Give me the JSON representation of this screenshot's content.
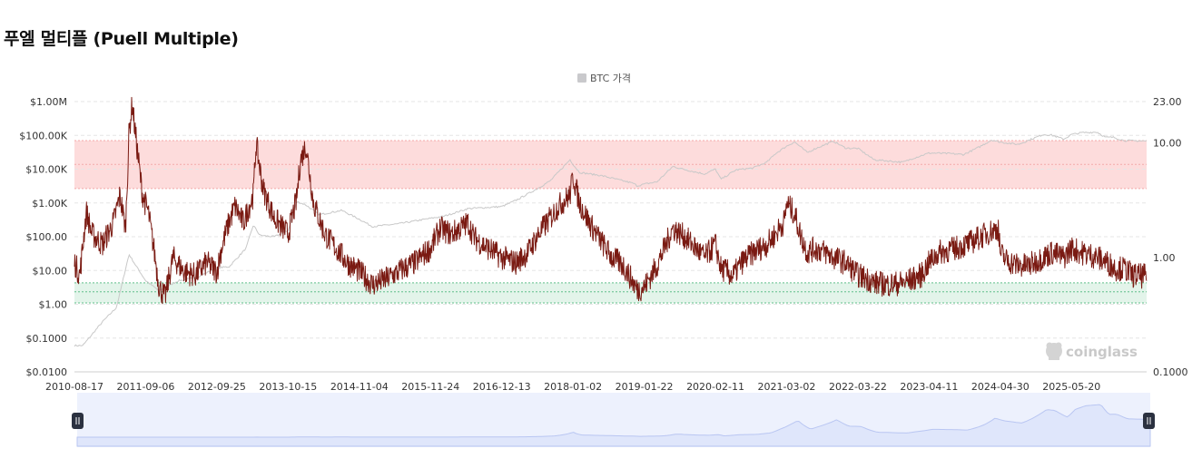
{
  "page": {
    "title": "푸엘 멀티플 (Puell Multiple)"
  },
  "legend": {
    "label": "BTC 가격",
    "swatch_color": "#c9c9cc"
  },
  "watermark": {
    "text": "coinglass",
    "icon": "coinglass-logo-icon"
  },
  "colors": {
    "puell_line": "#7a1a12",
    "btc_line": "#c8c8c8",
    "overvalued_band": "#fddcdc",
    "overvalued_border": "#f4a9a9",
    "undervalued_band": "#e3f4ea",
    "undervalued_border": "#5fbf8a",
    "navigator_fill": "#dfe6fb",
    "navigator_bg": "#edf1fd"
  },
  "chart_data": {
    "type": "line",
    "title": "",
    "xlabel": "",
    "ylabel": "",
    "x_tick_labels": [
      "2010-08-17",
      "2011-09-06",
      "2012-09-25",
      "2013-10-15",
      "2014-11-04",
      "2015-11-24",
      "2016-12-13",
      "2018-01-02",
      "2019-01-22",
      "2020-02-11",
      "2021-03-02",
      "2022-03-22",
      "2023-04-11",
      "2024-04-30",
      "2025-05-20"
    ],
    "x_range": [
      "2010-08-17",
      "2026-06-30"
    ],
    "left_axis": {
      "scale": "log",
      "range": [
        0.01,
        1000000
      ],
      "tick_values": [
        0.01,
        0.1,
        1,
        10,
        100,
        1000,
        10000,
        100000,
        1000000
      ],
      "tick_labels": [
        "$0.0100",
        "$0.1000",
        "$1.00",
        "$10.00",
        "$100.00",
        "$1.00K",
        "$10.00K",
        "$100.00K",
        "$1.00M"
      ]
    },
    "right_axis": {
      "scale": "log",
      "range": [
        0.1,
        23.0
      ],
      "tick_values": [
        0.1,
        1.0,
        10.0,
        23.0
      ],
      "tick_labels": [
        "0.1000",
        "1.00",
        "10.00",
        "23.00"
      ]
    },
    "bands": [
      {
        "name": "overvalued",
        "axis": "right",
        "range": [
          4.0,
          10.5
        ]
      },
      {
        "name": "undervalued",
        "axis": "right",
        "range": [
          0.4,
          0.6
        ]
      }
    ],
    "dashed_guides": [
      {
        "axis": "right",
        "value": 6.5
      },
      {
        "axis": "right",
        "value": 0.5
      }
    ],
    "grid": true,
    "legend_position": "top-center",
    "series": [
      {
        "name": "BTC 가격",
        "axis": "left",
        "style": "thin-grey",
        "x": [
          "2010-08-17",
          "2010-10-01",
          "2011-01-15",
          "2011-04-01",
          "2011-06-08",
          "2011-07-15",
          "2011-09-06",
          "2011-11-18",
          "2012-03-01",
          "2012-06-01",
          "2012-09-25",
          "2012-12-01",
          "2013-03-01",
          "2013-04-10",
          "2013-05-15",
          "2013-08-01",
          "2013-10-15",
          "2013-11-30",
          "2014-01-15",
          "2014-04-01",
          "2014-08-01",
          "2014-11-04",
          "2015-01-14",
          "2015-06-01",
          "2015-11-24",
          "2016-02-01",
          "2016-06-15",
          "2016-12-13",
          "2017-03-01",
          "2017-06-15",
          "2017-09-01",
          "2017-12-17",
          "2018-01-02",
          "2018-02-06",
          "2018-06-01",
          "2018-11-25",
          "2018-12-15",
          "2019-01-22",
          "2019-04-01",
          "2019-06-26",
          "2019-09-01",
          "2019-12-15",
          "2020-02-11",
          "2020-03-12",
          "2020-06-01",
          "2020-09-01",
          "2020-11-15",
          "2021-01-01",
          "2021-03-02",
          "2021-04-14",
          "2021-06-22",
          "2021-08-01",
          "2021-11-10",
          "2022-01-15",
          "2022-03-22",
          "2022-06-18",
          "2022-11-21",
          "2023-01-15",
          "2023-04-11",
          "2023-08-01",
          "2023-10-15",
          "2024-01-10",
          "2024-03-14",
          "2024-04-30",
          "2024-08-05",
          "2024-11-15",
          "2024-12-17",
          "2025-02-01",
          "2025-04-08",
          "2025-05-20",
          "2025-07-14",
          "2025-10-06",
          "2025-11-20",
          "2026-01-01",
          "2026-03-01",
          "2026-06-30"
        ],
        "values": [
          0.06,
          0.06,
          0.3,
          0.8,
          30,
          14,
          5,
          2.5,
          5,
          6,
          12,
          13,
          45,
          220,
          110,
          100,
          150,
          1100,
          900,
          450,
          600,
          330,
          200,
          240,
          350,
          400,
          680,
          780,
          1200,
          2500,
          4500,
          19000,
          14000,
          8000,
          6500,
          3800,
          3200,
          3600,
          4200,
          12000,
          9600,
          7200,
          10000,
          5000,
          9500,
          10800,
          16000,
          29000,
          48000,
          64000,
          31000,
          40000,
          67000,
          42000,
          41000,
          19000,
          16000,
          21000,
          30000,
          29000,
          27000,
          46000,
          73000,
          63000,
          54000,
          90000,
          106000,
          102000,
          77000,
          106000,
          120000,
          125000,
          87000,
          88000,
          70000,
          68000
        ]
      },
      {
        "name": "Puell Multiple",
        "axis": "right",
        "style": "noisy-dark-red",
        "x": [
          "2010-08-17",
          "2010-09-15",
          "2010-10-20",
          "2010-11-20",
          "2011-01-15",
          "2011-03-15",
          "2011-04-20",
          "2011-05-20",
          "2011-06-08",
          "2011-06-25",
          "2011-07-25",
          "2011-08-20",
          "2011-09-20",
          "2011-10-20",
          "2011-11-18",
          "2011-12-20",
          "2012-02-01",
          "2012-04-01",
          "2012-06-01",
          "2012-08-01",
          "2012-09-25",
          "2012-10-20",
          "2012-11-28",
          "2013-01-01",
          "2013-02-15",
          "2013-04-10",
          "2013-04-25",
          "2013-06-01",
          "2013-08-01",
          "2013-10-15",
          "2013-11-30",
          "2013-12-20",
          "2014-01-20",
          "2014-03-01",
          "2014-05-01",
          "2014-07-01",
          "2014-09-01",
          "2014-11-04",
          "2014-12-15",
          "2015-01-14",
          "2015-04-01",
          "2015-07-01",
          "2015-09-01",
          "2015-11-24",
          "2016-01-15",
          "2016-03-15",
          "2016-06-15",
          "2016-07-15",
          "2016-09-01",
          "2016-12-13",
          "2017-03-01",
          "2017-05-01",
          "2017-07-01",
          "2017-09-01",
          "2017-10-15",
          "2017-12-17",
          "2018-01-02",
          "2018-02-06",
          "2018-04-01",
          "2018-06-01",
          "2018-08-01",
          "2018-10-01",
          "2018-11-25",
          "2018-12-15",
          "2019-01-22",
          "2019-04-01",
          "2019-06-26",
          "2019-09-01",
          "2019-12-15",
          "2020-02-11",
          "2020-03-12",
          "2020-04-15",
          "2020-05-15",
          "2020-07-01",
          "2020-09-01",
          "2020-11-15",
          "2021-01-01",
          "2021-02-20",
          "2021-03-02",
          "2021-04-14",
          "2021-05-20",
          "2021-06-22",
          "2021-08-01",
          "2021-10-01",
          "2021-11-10",
          "2022-01-15",
          "2022-03-22",
          "2022-05-15",
          "2022-06-18",
          "2022-09-01",
          "2022-11-21",
          "2023-01-15",
          "2023-03-01",
          "2023-04-11",
          "2023-06-01",
          "2023-09-01",
          "2023-11-01",
          "2024-01-10",
          "2024-03-14",
          "2024-04-19",
          "2024-04-30",
          "2024-06-01",
          "2024-08-05",
          "2024-10-01",
          "2024-12-17",
          "2025-02-01",
          "2025-04-08",
          "2025-05-20",
          "2025-07-14",
          "2025-09-01",
          "2025-10-06",
          "2025-12-01",
          "2026-01-15",
          "2026-03-01",
          "2026-04-15",
          "2026-06-30"
        ],
        "values": [
          0.9,
          0.7,
          2.5,
          1.6,
          1.3,
          2.0,
          3.5,
          1.8,
          12.0,
          22.0,
          8.0,
          3.5,
          2.5,
          1.2,
          0.55,
          0.45,
          1.0,
          0.75,
          0.7,
          0.9,
          0.75,
          1.2,
          2.0,
          2.8,
          2.0,
          3.5,
          10.0,
          4.0,
          2.2,
          1.6,
          3.2,
          7.0,
          9.5,
          3.0,
          1.6,
          1.2,
          0.9,
          0.75,
          0.65,
          0.58,
          0.65,
          0.8,
          0.9,
          1.2,
          1.8,
          1.6,
          2.0,
          1.5,
          1.3,
          1.0,
          0.9,
          1.1,
          1.6,
          2.2,
          2.8,
          3.5,
          5.2,
          3.0,
          2.0,
          1.4,
          1.0,
          0.85,
          0.6,
          0.52,
          0.55,
          0.85,
          1.8,
          1.5,
          1.0,
          1.3,
          0.8,
          0.75,
          0.68,
          0.9,
          1.1,
          1.3,
          1.6,
          2.1,
          3.0,
          2.4,
          1.5,
          1.1,
          1.2,
          1.1,
          1.0,
          0.9,
          0.7,
          0.65,
          0.6,
          0.58,
          0.6,
          0.65,
          0.7,
          0.9,
          1.1,
          1.2,
          1.3,
          1.5,
          1.7,
          1.8,
          1.1,
          0.95,
          0.85,
          0.85,
          1.0,
          1.1,
          1.0,
          1.2,
          1.1,
          1.05,
          1.0,
          0.9,
          0.8,
          0.8,
          0.7,
          0.68
        ]
      }
    ]
  }
}
